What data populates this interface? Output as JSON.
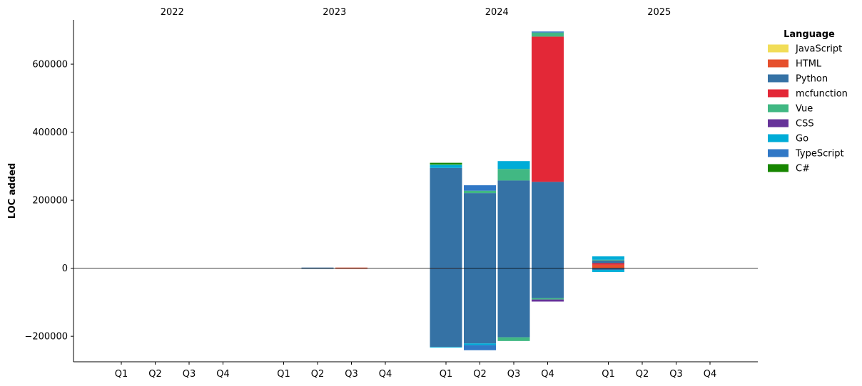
{
  "chart_data": {
    "type": "bar",
    "stacked": true,
    "diverging": true,
    "title": "",
    "xlabel": "",
    "ylabel": "LOC added",
    "ylim": [
      -275000,
      730000
    ],
    "yticks": [
      -200000,
      0,
      200000,
      400000,
      600000
    ],
    "ytick_labels": [
      "−200000",
      "0",
      "200000",
      "400000",
      "600000"
    ],
    "grid": false,
    "legend_position": "top-right",
    "legend_title": "Language",
    "years": [
      "2022",
      "2023",
      "2024",
      "2025"
    ],
    "quarters": [
      "Q1",
      "Q2",
      "Q3",
      "Q4"
    ],
    "languages": [
      {
        "name": "JavaScript",
        "color": "#f1dd58"
      },
      {
        "name": "HTML",
        "color": "#e6502d"
      },
      {
        "name": "Python",
        "color": "#3572a5"
      },
      {
        "name": "mcfunction",
        "color": "#e32837"
      },
      {
        "name": "Vue",
        "color": "#41b883"
      },
      {
        "name": "CSS",
        "color": "#663399"
      },
      {
        "name": "Go",
        "color": "#00acd7"
      },
      {
        "name": "TypeScript",
        "color": "#3178c6"
      },
      {
        "name": "C#",
        "color": "#178600"
      }
    ],
    "bars": [
      {
        "year": "2023",
        "quarter": "Q2",
        "added": [
          {
            "lang": "Python",
            "value": 2000
          }
        ],
        "removed": [
          {
            "lang": "Python",
            "value": 1000
          }
        ]
      },
      {
        "year": "2023",
        "quarter": "Q3",
        "added": [
          {
            "lang": "HTML",
            "value": 2000
          }
        ],
        "removed": [
          {
            "lang": "HTML",
            "value": 1000
          }
        ]
      },
      {
        "year": "2024",
        "quarter": "Q1",
        "added": [
          {
            "lang": "HTML",
            "value": 1000
          },
          {
            "lang": "Python",
            "value": 294000
          },
          {
            "lang": "Go",
            "value": 8000
          },
          {
            "lang": "Vue",
            "value": 3000
          },
          {
            "lang": "C#",
            "value": 4000
          }
        ],
        "removed": [
          {
            "lang": "Python",
            "value": 231000
          },
          {
            "lang": "Go",
            "value": 2000
          }
        ]
      },
      {
        "year": "2024",
        "quarter": "Q2",
        "added": [
          {
            "lang": "Python",
            "value": 221000
          },
          {
            "lang": "Vue",
            "value": 7000
          },
          {
            "lang": "TypeScript",
            "value": 16000
          }
        ],
        "removed": [
          {
            "lang": "Python",
            "value": 221000
          },
          {
            "lang": "Go",
            "value": 5000
          },
          {
            "lang": "TypeScript",
            "value": 15000
          }
        ]
      },
      {
        "year": "2024",
        "quarter": "Q3",
        "added": [
          {
            "lang": "Python",
            "value": 258000
          },
          {
            "lang": "Vue",
            "value": 34000
          },
          {
            "lang": "Go",
            "value": 23000
          }
        ],
        "removed": [
          {
            "lang": "Python",
            "value": 203000
          },
          {
            "lang": "Vue",
            "value": 11000
          }
        ]
      },
      {
        "year": "2024",
        "quarter": "Q4",
        "added": [
          {
            "lang": "Python",
            "value": 254000
          },
          {
            "lang": "mcfunction",
            "value": 427000
          },
          {
            "lang": "Vue",
            "value": 12000
          },
          {
            "lang": "TypeScript",
            "value": 3000
          }
        ],
        "removed": [
          {
            "lang": "Python",
            "value": 88000
          },
          {
            "lang": "Vue",
            "value": 4000
          },
          {
            "lang": "CSS",
            "value": 6000
          }
        ]
      },
      {
        "year": "2025",
        "quarter": "Q1",
        "added": [
          {
            "lang": "HTML",
            "value": 10000
          },
          {
            "lang": "mcfunction",
            "value": 5000
          },
          {
            "lang": "Python",
            "value": 8000
          },
          {
            "lang": "Vue",
            "value": 2000
          },
          {
            "lang": "Go",
            "value": 10000
          }
        ],
        "removed": [
          {
            "lang": "Python",
            "value": 5000
          },
          {
            "lang": "Go",
            "value": 6000
          }
        ]
      }
    ]
  }
}
